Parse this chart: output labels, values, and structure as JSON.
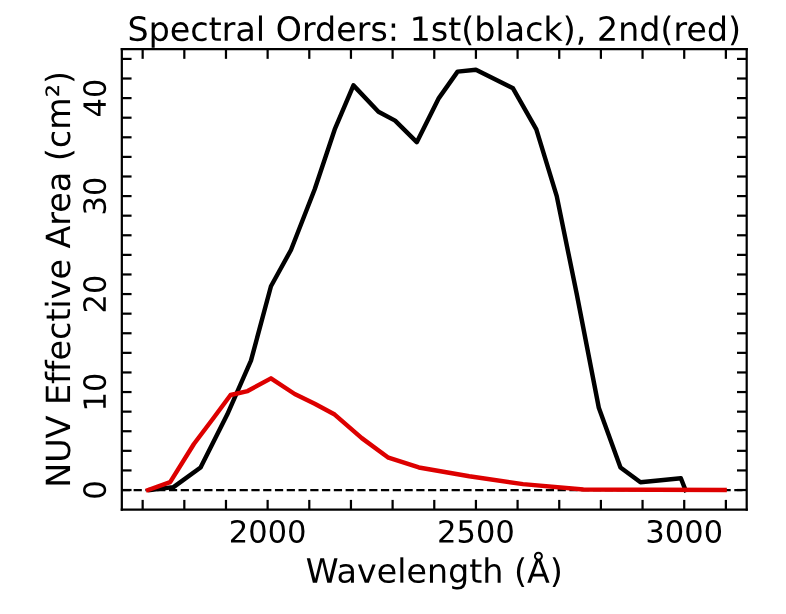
{
  "chart_data": {
    "type": "line",
    "title": "Spectral Orders: 1st(black), 2nd(red)",
    "xlabel": "Wavelength (Å)",
    "ylabel": "NUV Effective Area (cm²)",
    "series": [
      {
        "color": "#000000",
        "x": [
          1718,
          1774,
          1839,
          1903,
          1960,
          2008,
          2056,
          2113,
          2161,
          2206,
          2266,
          2306,
          2358,
          2411,
          2456,
          2500,
          2589,
          2645,
          2694,
          2742,
          2795,
          2847,
          2895,
          2944,
          2992,
          3003
        ],
        "values": [
          0,
          0.3,
          2.3,
          7.7,
          13.2,
          20.8,
          24.5,
          30.7,
          36.8,
          41.3,
          38.6,
          37.7,
          35.5,
          40,
          42.7,
          42.9,
          41,
          36.8,
          30,
          20,
          8.4,
          2.3,
          0.8,
          1.0,
          1.2,
          0
        ]
      },
      {
        "color": "#dd0000",
        "x": [
          1713,
          1766,
          1823,
          1871,
          1911,
          1952,
          2008,
          2065,
          2113,
          2161,
          2226,
          2290,
          2363,
          2484,
          2613,
          2758,
          3097
        ],
        "values": [
          0,
          0.8,
          4.7,
          7.4,
          9.7,
          10.1,
          11.4,
          9.8,
          8.8,
          7.7,
          5.3,
          3.3,
          2.3,
          1.4,
          0.6,
          0.05,
          0
        ]
      }
    ],
    "xlim": [
      1650,
      3150
    ],
    "ylim": [
      -2,
      45
    ],
    "xticks": [
      {
        "value": 1700,
        "label": null
      },
      {
        "value": 1800,
        "label": null
      },
      {
        "value": 1900,
        "label": null
      },
      2000,
      {
        "value": 2100,
        "label": null
      },
      {
        "value": 2200,
        "label": null
      },
      {
        "value": 2300,
        "label": null
      },
      {
        "value": 2400,
        "label": null
      },
      2500,
      {
        "value": 2600,
        "label": null
      },
      {
        "value": 2700,
        "label": null
      },
      {
        "value": 2800,
        "label": null
      },
      {
        "value": 2900,
        "label": null
      },
      3000,
      {
        "value": 3100,
        "label": null
      }
    ],
    "yticks": [
      0,
      {
        "value": 2,
        "label": null
      },
      {
        "value": 4,
        "label": null
      },
      {
        "value": 6,
        "label": null
      },
      {
        "value": 8,
        "label": null
      },
      10,
      {
        "value": 12,
        "label": null
      },
      {
        "value": 14,
        "label": null
      },
      {
        "value": 16,
        "label": null
      },
      {
        "value": 18,
        "label": null
      },
      20,
      {
        "value": 22,
        "label": null
      },
      {
        "value": 24,
        "label": null
      },
      {
        "value": 26,
        "label": null
      },
      {
        "value": 28,
        "label": null
      },
      30,
      {
        "value": 32,
        "label": null
      },
      {
        "value": 34,
        "label": null
      },
      {
        "value": 36,
        "label": null
      },
      {
        "value": 38,
        "label": null
      },
      40,
      {
        "value": 42,
        "label": null
      },
      {
        "value": 44,
        "label": null
      }
    ],
    "ref_lines": [
      {
        "axis": "y",
        "value": 0,
        "color": "#000000",
        "line_style": "dashed"
      }
    ],
    "grid": false,
    "line_style": "solid",
    "marker": "none"
  }
}
